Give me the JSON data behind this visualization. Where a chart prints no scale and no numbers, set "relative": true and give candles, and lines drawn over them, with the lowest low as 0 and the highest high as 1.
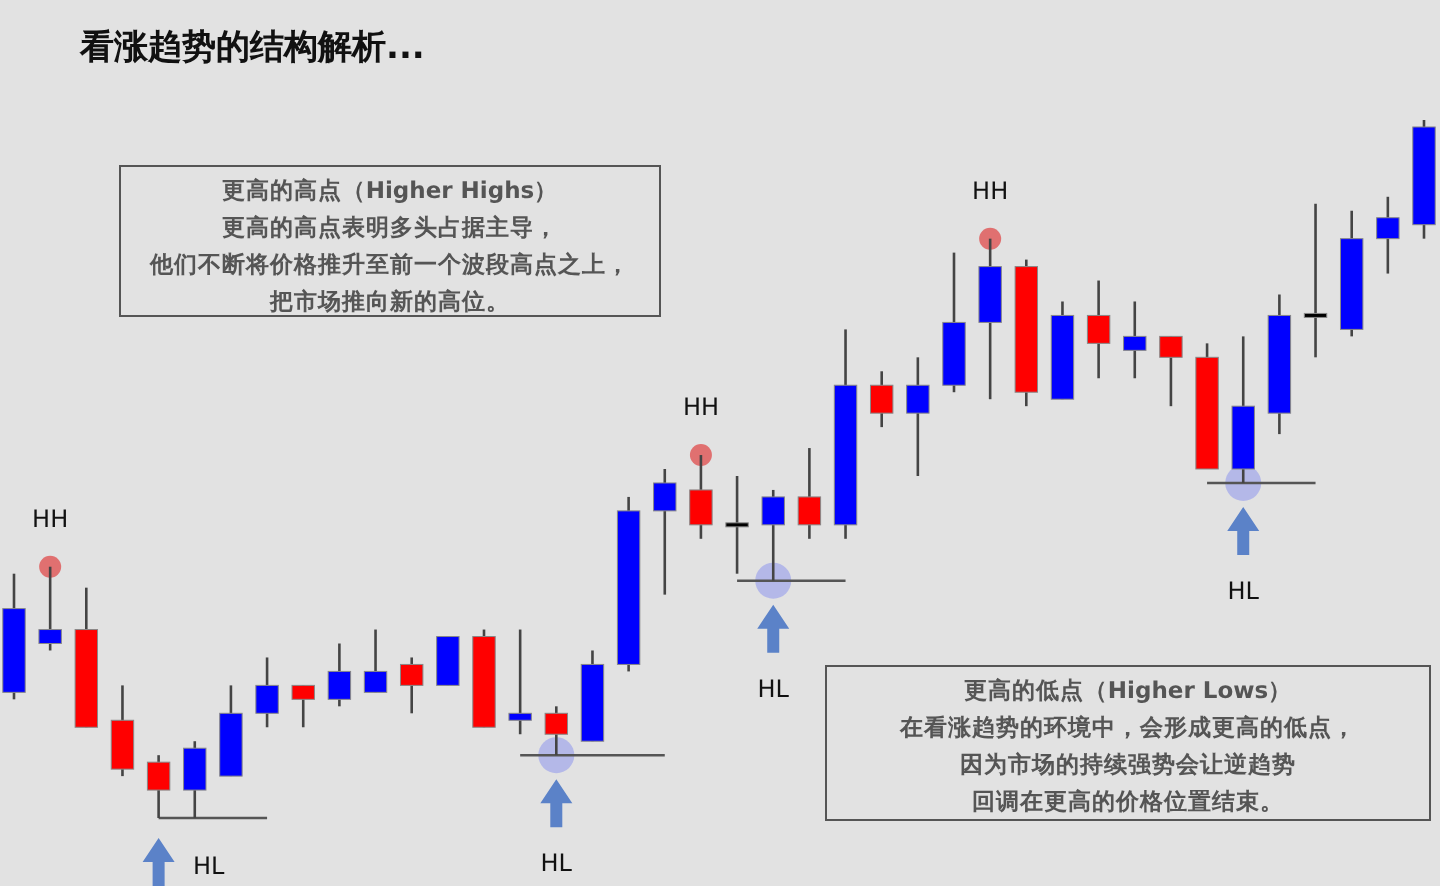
{
  "chart_data": {
    "type": "candlestick",
    "relative": true,
    "title": "看涨趋势的结构解析...",
    "categories": [
      null,
      null,
      null,
      null,
      null,
      null,
      null,
      null,
      null,
      null,
      null,
      null,
      null,
      null,
      null,
      null,
      null,
      null,
      null,
      null,
      null,
      null,
      null,
      null,
      null,
      null,
      null,
      null,
      null,
      null,
      null,
      null,
      null,
      null,
      null,
      null,
      null,
      null,
      null,
      null
    ],
    "ohlc": [
      [
        0.18,
        0.35,
        0.17,
        0.3
      ],
      [
        0.25,
        0.36,
        0.24,
        0.27
      ],
      [
        0.27,
        0.33,
        0.13,
        0.13
      ],
      [
        0.14,
        0.19,
        0.06,
        0.07
      ],
      [
        0.08,
        0.09,
        0,
        0.04
      ],
      [
        0.04,
        0.11,
        0,
        0.1
      ],
      [
        0.06,
        0.19,
        0.06,
        0.15
      ],
      [
        0.15,
        0.23,
        0.13,
        0.19
      ],
      [
        0.19,
        0.19,
        0.13,
        0.17
      ],
      [
        0.17,
        0.25,
        0.16,
        0.21
      ],
      [
        0.18,
        0.27,
        0.18,
        0.21
      ],
      [
        0.22,
        0.23,
        0.15,
        0.19
      ],
      [
        0.19,
        0.26,
        0.19,
        0.26
      ],
      [
        0.26,
        0.27,
        0.13,
        0.13
      ],
      [
        0.14,
        0.27,
        0.12,
        0.15
      ],
      [
        0.15,
        0.16,
        0.09,
        0.12
      ],
      [
        0.11,
        0.24,
        0.11,
        0.22
      ],
      [
        0.22,
        0.46,
        0.21,
        0.44
      ],
      [
        0.44,
        0.5,
        0.32,
        0.48
      ],
      [
        0.47,
        0.52,
        0.4,
        0.42
      ],
      [
        0.42,
        0.49,
        0.35,
        0.42
      ],
      [
        0.42,
        0.47,
        0.34,
        0.46
      ],
      [
        0.46,
        0.53,
        0.4,
        0.42
      ],
      [
        0.42,
        0.7,
        0.4,
        0.62
      ],
      [
        0.62,
        0.64,
        0.56,
        0.58
      ],
      [
        0.58,
        0.66,
        0.49,
        0.62
      ],
      [
        0.62,
        0.81,
        0.61,
        0.71
      ],
      [
        0.71,
        0.83,
        0.6,
        0.79
      ],
      [
        0.79,
        0.8,
        0.59,
        0.61
      ],
      [
        0.6,
        0.74,
        0.6,
        0.72
      ],
      [
        0.72,
        0.77,
        0.63,
        0.68
      ],
      [
        0.67,
        0.74,
        0.63,
        0.69
      ],
      [
        0.69,
        0.69,
        0.59,
        0.66
      ],
      [
        0.66,
        0.68,
        0.5,
        0.5
      ],
      [
        0.5,
        0.69,
        0.48,
        0.59
      ],
      [
        0.58,
        0.75,
        0.55,
        0.72
      ],
      [
        0.72,
        0.88,
        0.66,
        0.72
      ],
      [
        0.7,
        0.87,
        0.69,
        0.83
      ],
      [
        0.83,
        0.89,
        0.78,
        0.86
      ],
      [
        0.85,
        1,
        0.83,
        0.99
      ]
    ],
    "colors": [
      "#0000ff",
      "#0000ff",
      "#ff0000",
      "#ff0000",
      "#ff0000",
      "#0000ff",
      "#0000ff",
      "#0000ff",
      "#ff0000",
      "#0000ff",
      "#0000ff",
      "#ff0000",
      "#0000ff",
      "#ff0000",
      "#0000ff",
      "#ff0000",
      "#0000ff",
      "#0000ff",
      "#0000ff",
      "#ff0000",
      "#000000",
      "#0000ff",
      "#ff0000",
      "#0000ff",
      "#ff0000",
      "#0000ff",
      "#0000ff",
      "#0000ff",
      "#ff0000",
      "#0000ff",
      "#ff0000",
      "#0000ff",
      "#ff0000",
      "#ff0000",
      "#0000ff",
      "#0000ff",
      "#000000",
      "#0000ff",
      "#0000ff",
      "#0000ff"
    ],
    "series": [
      {
        "type": "scatter",
        "color": "#e07070",
        "values": [
          null,
          0.36,
          null,
          null,
          null,
          null,
          null,
          null,
          null,
          null,
          null,
          null,
          null,
          null,
          null,
          null,
          null,
          null,
          null,
          0.52,
          null,
          null,
          null,
          null,
          null,
          null,
          null,
          0.83,
          null,
          null,
          null,
          null,
          null,
          null,
          null,
          null,
          null,
          null,
          null,
          null
        ]
      },
      {
        "type": "scatter",
        "color": "#a9aeea",
        "values": [
          null,
          null,
          null,
          null,
          null,
          null,
          null,
          null,
          null,
          null,
          null,
          null,
          null,
          null,
          null,
          0.09,
          null,
          null,
          null,
          null,
          null,
          0.34,
          null,
          null,
          null,
          null,
          null,
          null,
          null,
          null,
          null,
          null,
          null,
          null,
          0.48,
          null,
          null,
          null,
          null,
          null
        ]
      },
      {
        "type": "line",
        "color": "#555555",
        "values": [
          null,
          null,
          null,
          null,
          0,
          0,
          0,
          0,
          null,
          null,
          null,
          null,
          null,
          null,
          0.09,
          0.09,
          0.09,
          0.09,
          0.09,
          null,
          0.34,
          0.34,
          0.34,
          0.34,
          null,
          null,
          null,
          null,
          null,
          null,
          null,
          null,
          null,
          0.48,
          0.48,
          0.48,
          0.48,
          null,
          null,
          null
        ]
      }
    ],
    "annotations": [
      "更高的高点（Higher Highs）更高的高点表明多头占据主导，他们不断将价格推升至前一个波段高点之上，把市场推向新的高位。",
      "更高的低点（Higher Lows）在看涨趋势的环境中，会形成更高的低点，因为市场的持续强势会让逆趋势回调在更高的价格位置结束。",
      "HH",
      "HH",
      "HH",
      "HL",
      "HL",
      "HL",
      "HL"
    ]
  }
}
